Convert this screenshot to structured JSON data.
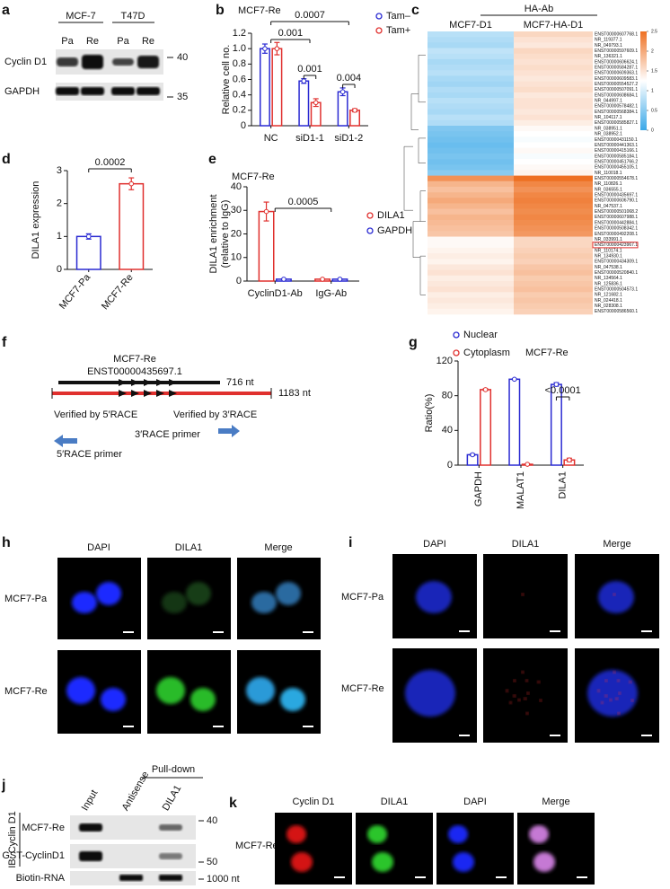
{
  "blot_a": {
    "panel": "a",
    "groups": [
      "MCF-7",
      "T47D"
    ],
    "lanes": [
      "Pa",
      "Re",
      "Pa",
      "Re"
    ],
    "rows": [
      "Cyclin D1",
      "GAPDH"
    ],
    "markers": [
      "40",
      "35"
    ]
  },
  "chart_data": [
    {
      "type": "bar",
      "panel": "b",
      "title": "MCF7-Re",
      "y_label": "Relative cell no.",
      "categories": [
        "NC",
        "siD1-1",
        "siD1-2"
      ],
      "series": [
        {
          "name": "Tam–",
          "color": "#2a2ad2",
          "values": [
            1.0,
            0.58,
            0.44
          ],
          "errors": [
            0.06,
            0.03,
            0.05
          ]
        },
        {
          "name": "Tam+",
          "color": "#e0302e",
          "values": [
            1.0,
            0.3,
            0.2
          ],
          "errors": [
            0.08,
            0.05,
            0.02
          ]
        }
      ],
      "ylim": [
        0,
        1.2
      ],
      "yticks": [
        0,
        0.2,
        0.4,
        0.6,
        0.8,
        {
          "value": 1,
          "label": "1.0"
        },
        1.2
      ],
      "legend": "upper right",
      "annotations": [
        "0.0007",
        "0.001",
        "0.001",
        "0.004"
      ]
    },
    {
      "type": "heatmap",
      "panel": "c",
      "title": "HA-Ab",
      "columns": [
        "MCF7-D1",
        "MCF7-HA-D1"
      ],
      "rows": [
        "ENST00000607768.1",
        "NR_119377.1",
        "NR_049793.1",
        "ENST00000597609.1",
        "NR_136321.1",
        "ENST00000606624.1",
        "ENST00000584287.1",
        "ENST00000609363.1",
        "ENST00000609583.1",
        "ENST00000554527.2",
        "ENST00000507091.1",
        "ENST00000608684.1",
        "NR_044997.1",
        "ENST00000578482.1",
        "ENST00000568384.1",
        "NR_104117.1",
        "ENST00000585827.1",
        "NR_038951.1",
        "NR_038952.1",
        "ENST00000431150.1",
        "ENST00000441363.1",
        "ENST00000415166.1",
        "ENST00000585184.1",
        "ENST00000451766.2",
        "ENST00000455105.1",
        "NR_110018.1",
        "ENST00000554678.1",
        "NR_110826.1",
        "NR_036555.1",
        "ENST00000435697.1",
        "ENST00000606790.1",
        "NR_047537.1",
        "ENST00000501068.2",
        "ENST00000607988.1",
        "ENST00000442884.1",
        "ENST00000508342.1",
        "ENST00000492208.1",
        "NR_033991.1",
        "ENST00000423967.1",
        "NR_110174.1",
        "NR_134930.1",
        "ENST00000434309.1",
        "NR_047538.1",
        "ENST00000520840.1",
        "NR_134564.1",
        "NR_125836.1",
        "ENST00000504573.1",
        "NR_121682.1",
        "NR_024418.1",
        "NR_028308.1",
        "ENST00000586560.1"
      ],
      "values": [
        [
          0.8,
          1.6
        ],
        [
          0.75,
          1.5
        ],
        [
          0.7,
          1.45
        ],
        [
          0.85,
          1.6
        ],
        [
          0.8,
          1.55
        ],
        [
          0.7,
          1.5
        ],
        [
          0.75,
          1.55
        ],
        [
          0.8,
          1.5
        ],
        [
          0.7,
          1.45
        ],
        [
          0.65,
          1.5
        ],
        [
          0.75,
          1.55
        ],
        [
          0.7,
          1.45
        ],
        [
          0.8,
          1.5
        ],
        [
          0.75,
          1.5
        ],
        [
          0.7,
          1.45
        ],
        [
          0.8,
          1.5
        ],
        [
          0.75,
          1.4
        ],
        [
          0.45,
          1.3
        ],
        [
          0.4,
          1.25
        ],
        [
          0.35,
          1.2
        ],
        [
          0.3,
          1.25
        ],
        [
          0.35,
          1.3
        ],
        [
          0.4,
          1.2
        ],
        [
          0.35,
          1.25
        ],
        [
          0.4,
          1.3
        ],
        [
          0.5,
          1.35
        ],
        [
          2.2,
          2.5
        ],
        [
          1.9,
          2.3
        ],
        [
          1.8,
          2.2
        ],
        [
          1.9,
          2.3
        ],
        [
          2.0,
          2.35
        ],
        [
          1.9,
          2.3
        ],
        [
          1.8,
          2.25
        ],
        [
          1.9,
          2.3
        ],
        [
          1.85,
          2.25
        ],
        [
          1.8,
          2.2
        ],
        [
          1.75,
          2.15
        ],
        [
          1.3,
          1.6
        ],
        [
          1.3,
          1.6
        ],
        [
          1.35,
          1.65
        ],
        [
          1.4,
          1.7
        ],
        [
          1.35,
          1.65
        ],
        [
          1.45,
          1.75
        ],
        [
          1.5,
          1.8
        ],
        [
          1.4,
          1.7
        ],
        [
          1.45,
          1.75
        ],
        [
          1.5,
          1.8
        ],
        [
          1.4,
          1.7
        ],
        [
          1.45,
          1.75
        ],
        [
          1.4,
          1.7
        ],
        [
          1.35,
          1.65
        ]
      ],
      "clim": [
        0,
        2.5
      ],
      "colorbar_ticks": [
        0,
        0.5,
        1,
        1.5,
        2,
        2.5
      ],
      "colormap": [
        "#3aa8e8",
        "#ffffff",
        "#ee7022"
      ]
    },
    {
      "type": "bar",
      "panel": "d",
      "y_label": "DILA1 expression",
      "categories": [
        "MCF7-Pa",
        "MCF7-Re"
      ],
      "values": [
        1.0,
        2.6
      ],
      "errors": [
        0.08,
        0.18
      ],
      "colors": [
        "#2a2ad2",
        "#e0302e"
      ],
      "ylim": [
        0,
        3
      ],
      "yticks": [
        0,
        1,
        2,
        3
      ],
      "annotations": [
        "0.0002"
      ]
    },
    {
      "type": "bar",
      "panel": "e",
      "title": "MCF7-Re",
      "y_label": [
        "DILA1 enrichment",
        "(relative to IgG)"
      ],
      "categories": [
        "CyclinD1-Ab",
        "IgG-Ab"
      ],
      "series": [
        {
          "name": "DILA1",
          "color": "#e0302e",
          "values": [
            29.5,
            0.8
          ],
          "errors": [
            4,
            0.1
          ]
        },
        {
          "name": "GAPDH",
          "color": "#2a2ad2",
          "values": [
            0.8,
            0.8
          ],
          "errors": [
            0.1,
            0.1
          ]
        }
      ],
      "ylim": [
        0,
        40
      ],
      "yticks": [
        0,
        10,
        20,
        30,
        40
      ],
      "legend": "upper right",
      "annotations": [
        "0.0005"
      ]
    },
    {
      "type": "bar",
      "panel": "g",
      "title": "MCF7-Re",
      "y_label": "Ratio(%)",
      "categories": [
        "GAPDH",
        "MALAT1",
        "DILA1"
      ],
      "series": [
        {
          "name": "Nuclear",
          "color": "#2a2ad2",
          "values": [
            12,
            99,
            93
          ],
          "errors": [
            1,
            0.5,
            2
          ]
        },
        {
          "name": "Cytoplasm",
          "color": "#e0302e",
          "values": [
            87,
            1,
            6
          ],
          "errors": [
            1,
            0.3,
            2
          ]
        }
      ],
      "ylim": [
        0,
        120
      ],
      "yticks": [
        0,
        40,
        80,
        120
      ],
      "legend": "upper left",
      "annotations": [
        "<0.0001"
      ]
    }
  ],
  "diagram_f": {
    "panel": "f",
    "title": "MCF7-Re",
    "transcript": "ENST00000435697.1",
    "short_length": "716 nt",
    "full_length": "1183 nt",
    "left_note": "Verified by 5′RACE",
    "right_note": "Verified by 3′RACE",
    "primer_3": "3′RACE primer",
    "primer_5": "5′RACE primer"
  },
  "imaging_h": {
    "panel": "h",
    "columns": [
      "DAPI",
      "DILA1",
      "Merge"
    ],
    "rows": [
      "MCF7-Pa",
      "MCF7-Re"
    ]
  },
  "imaging_i": {
    "panel": "i",
    "columns": [
      "DAPI",
      "DILA1",
      "Merge"
    ],
    "rows": [
      "MCF7-Pa",
      "MCF7-Re"
    ]
  },
  "blot_j": {
    "panel": "j",
    "header": "Pull-down",
    "lanes": [
      "Input",
      "Antisense",
      "DILA1"
    ],
    "side_label": "IB: Cyclin D1",
    "rows": [
      "MCF7-Re",
      "GST-CyclinD1",
      "Biotin-RNA"
    ],
    "markers": [
      "40",
      "50",
      "1000 nt"
    ]
  },
  "imaging_k": {
    "panel": "k",
    "columns": [
      "Cyclin D1",
      "DILA1",
      "DAPI",
      "Merge"
    ],
    "rows": [
      "MCF7-Re"
    ]
  }
}
